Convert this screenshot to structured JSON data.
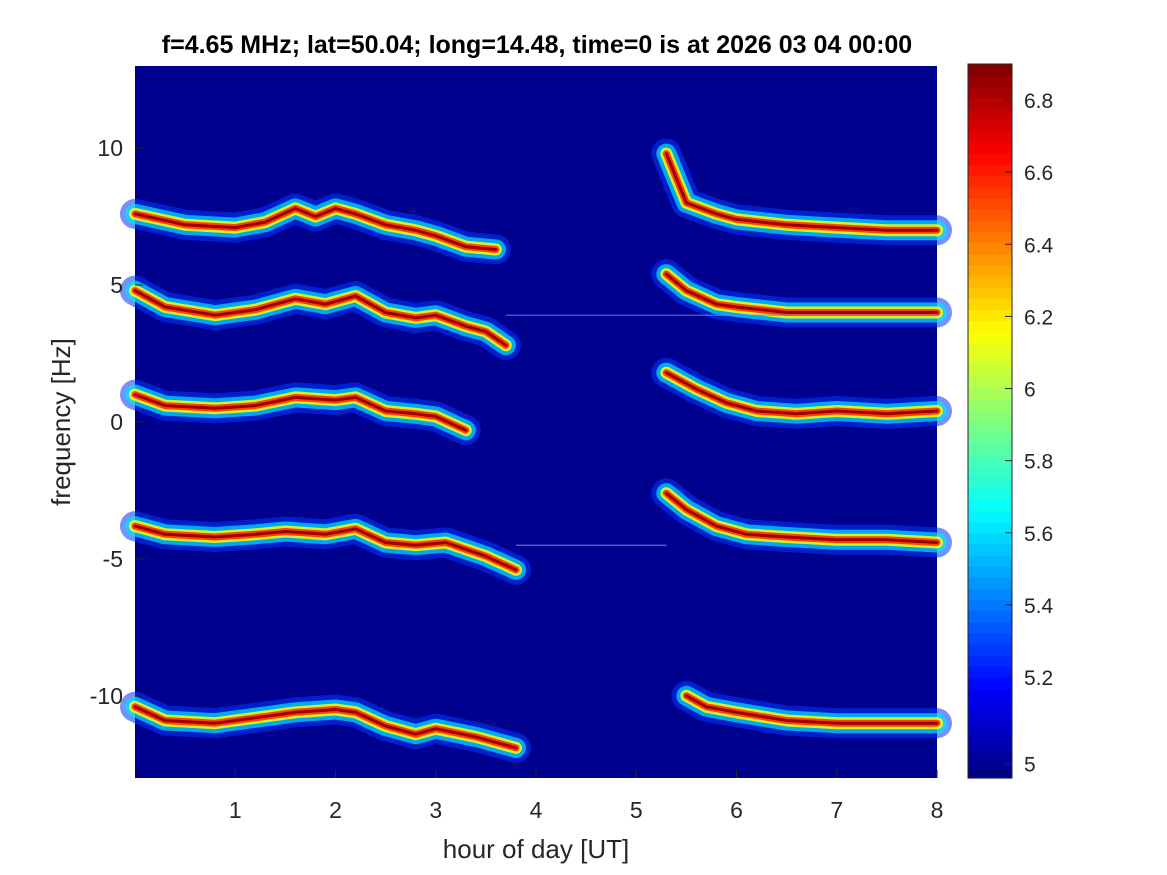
{
  "chart_data": {
    "type": "heatmap",
    "title": "f=4.65 MHz;  lat=50.04; long=14.48, time=0 is at 2026 03 04 00:00",
    "xlabel": "hour of day [UT]",
    "ylabel": "frequency [Hz]",
    "xlim": [
      0,
      8
    ],
    "ylim": [
      -13,
      13
    ],
    "xticks": [
      1,
      2,
      3,
      4,
      5,
      6,
      7,
      8
    ],
    "xtick_labels": [
      "1",
      "2",
      "3",
      "4",
      "5",
      "6",
      "7",
      "8"
    ],
    "yticks": [
      10,
      5,
      0,
      -5,
      -10
    ],
    "ytick_labels": [
      "10",
      "5",
      "0",
      "-5",
      "-10"
    ],
    "colormap": "jet",
    "colorbar": {
      "range": [
        4.92,
        6.9
      ],
      "ticks": [
        4.96,
        5.2,
        5.4,
        5.6,
        5.8,
        6.0,
        6.2,
        6.4,
        6.6,
        6.8
      ],
      "tick_labels": [
        "5",
        "5.2",
        "5.4",
        "5.6",
        "5.8",
        "6",
        "6.2",
        "6.4",
        "6.6",
        "6.8"
      ],
      "placement": "right"
    },
    "background_value": 4.96,
    "traces": [
      {
        "segments": [
          [
            [
              0.0,
              7.6
            ],
            [
              0.5,
              7.2
            ],
            [
              1.0,
              7.1
            ],
            [
              1.3,
              7.3
            ],
            [
              1.6,
              7.8
            ],
            [
              1.8,
              7.5
            ],
            [
              2.0,
              7.8
            ],
            [
              2.2,
              7.6
            ],
            [
              2.5,
              7.2
            ],
            [
              2.8,
              7.0
            ],
            [
              3.0,
              6.8
            ],
            [
              3.3,
              6.4
            ],
            [
              3.6,
              6.3
            ]
          ],
          [
            [
              5.3,
              9.8
            ],
            [
              5.5,
              8.0
            ],
            [
              5.8,
              7.6
            ],
            [
              6.0,
              7.4
            ],
            [
              6.5,
              7.2
            ],
            [
              7.0,
              7.1
            ],
            [
              7.5,
              7.0
            ],
            [
              8.0,
              7.0
            ]
          ]
        ]
      },
      {
        "segments": [
          [
            [
              0.0,
              4.8
            ],
            [
              0.3,
              4.2
            ],
            [
              0.8,
              3.9
            ],
            [
              1.2,
              4.1
            ],
            [
              1.6,
              4.5
            ],
            [
              1.9,
              4.3
            ],
            [
              2.2,
              4.6
            ],
            [
              2.5,
              4.0
            ],
            [
              2.8,
              3.8
            ],
            [
              3.0,
              3.9
            ],
            [
              3.3,
              3.5
            ],
            [
              3.5,
              3.3
            ],
            [
              3.7,
              2.8
            ]
          ],
          [
            [
              5.3,
              5.4
            ],
            [
              5.5,
              4.8
            ],
            [
              5.8,
              4.3
            ],
            [
              6.0,
              4.2
            ],
            [
              6.5,
              4.0
            ],
            [
              7.0,
              4.0
            ],
            [
              7.5,
              4.0
            ],
            [
              8.0,
              4.0
            ]
          ]
        ]
      },
      {
        "segments": [
          [
            [
              0.0,
              1.0
            ],
            [
              0.3,
              0.6
            ],
            [
              0.8,
              0.5
            ],
            [
              1.2,
              0.6
            ],
            [
              1.6,
              0.9
            ],
            [
              2.0,
              0.8
            ],
            [
              2.2,
              0.9
            ],
            [
              2.5,
              0.4
            ],
            [
              2.8,
              0.3
            ],
            [
              3.0,
              0.2
            ],
            [
              3.3,
              -0.3
            ]
          ],
          [
            [
              5.3,
              1.8
            ],
            [
              5.6,
              1.2
            ],
            [
              5.9,
              0.7
            ],
            [
              6.2,
              0.4
            ],
            [
              6.6,
              0.3
            ],
            [
              7.0,
              0.4
            ],
            [
              7.5,
              0.3
            ],
            [
              8.0,
              0.4
            ]
          ]
        ]
      },
      {
        "segments": [
          [
            [
              0.0,
              -3.8
            ],
            [
              0.3,
              -4.1
            ],
            [
              0.8,
              -4.2
            ],
            [
              1.2,
              -4.1
            ],
            [
              1.5,
              -4.0
            ],
            [
              1.9,
              -4.1
            ],
            [
              2.2,
              -3.9
            ],
            [
              2.5,
              -4.4
            ],
            [
              2.8,
              -4.5
            ],
            [
              3.1,
              -4.4
            ],
            [
              3.5,
              -4.9
            ],
            [
              3.8,
              -5.4
            ]
          ],
          [
            [
              5.3,
              -2.6
            ],
            [
              5.5,
              -3.2
            ],
            [
              5.8,
              -3.8
            ],
            [
              6.1,
              -4.1
            ],
            [
              6.5,
              -4.2
            ],
            [
              7.0,
              -4.3
            ],
            [
              7.5,
              -4.3
            ],
            [
              8.0,
              -4.4
            ]
          ]
        ]
      },
      {
        "segments": [
          [
            [
              0.0,
              -10.4
            ],
            [
              0.3,
              -10.9
            ],
            [
              0.8,
              -11.0
            ],
            [
              1.2,
              -10.8
            ],
            [
              1.6,
              -10.6
            ],
            [
              2.0,
              -10.5
            ],
            [
              2.2,
              -10.6
            ],
            [
              2.5,
              -11.1
            ],
            [
              2.8,
              -11.4
            ],
            [
              3.0,
              -11.2
            ],
            [
              3.4,
              -11.5
            ],
            [
              3.8,
              -11.9
            ]
          ],
          [
            [
              5.5,
              -10.0
            ],
            [
              5.7,
              -10.4
            ],
            [
              6.0,
              -10.6
            ],
            [
              6.5,
              -10.9
            ],
            [
              7.0,
              -11.0
            ],
            [
              7.5,
              -11.0
            ],
            [
              8.0,
              -11.0
            ]
          ]
        ]
      }
    ],
    "horizontal_lines": [
      {
        "y": 3.9,
        "x_range": [
          3.7,
          8.0
        ]
      },
      {
        "y": -4.5,
        "x_range": [
          3.8,
          5.3
        ]
      }
    ]
  }
}
